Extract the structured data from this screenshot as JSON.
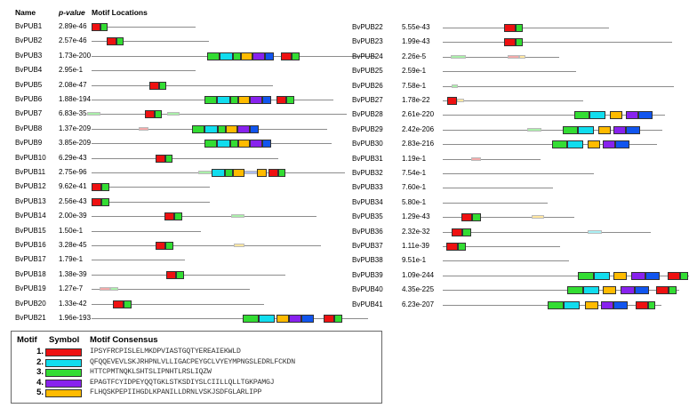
{
  "headers": {
    "name": "Name",
    "pvalue": "p-value",
    "locations": "Motif Locations"
  },
  "colors": {
    "m1": "#ee1111",
    "m2": "#11ddee",
    "m3": "#33dd33",
    "m4": "#8822ee",
    "m5": "#ffbb00",
    "m6": "#1155ee",
    "f1": "#f2aaaa",
    "f2": "#aaf0f4",
    "f3": "#aaeeaa",
    "f5": "#ffe6a0",
    "f6": "#aabbee"
  },
  "rows_left": [
    {
      "name": "BvPUB1",
      "pvalue": "2.89e-46",
      "motifs": [
        [
          "m1",
          0,
          10
        ],
        [
          "m3",
          10,
          8
        ]
      ]
    },
    {
      "name": "BvPUB2",
      "pvalue": "2.57e-46",
      "motifs": [
        [
          "m1",
          17,
          11
        ],
        [
          "m3",
          28,
          8
        ]
      ]
    },
    {
      "name": "BvPUB3",
      "pvalue": "1.73e-200",
      "motifs": [
        [
          "m3",
          130,
          14
        ],
        [
          "m2",
          144,
          15
        ],
        [
          "m3",
          159,
          9
        ],
        [
          "m5",
          168,
          13
        ],
        [
          "m4",
          181,
          14
        ],
        [
          "m6",
          195,
          10
        ],
        [
          "m1",
          213,
          12
        ],
        [
          "m3",
          225,
          9
        ]
      ]
    },
    {
      "name": "BvPUB4",
      "pvalue": "2.95e-1",
      "motifs": []
    },
    {
      "name": "BvPUB5",
      "pvalue": "2.08e-47",
      "motifs": [
        [
          "m1",
          65,
          11
        ],
        [
          "m3",
          76,
          8
        ]
      ]
    },
    {
      "name": "BvPUB6",
      "pvalue": "1.88e-194",
      "motifs": [
        [
          "m3",
          127,
          14
        ],
        [
          "m2",
          141,
          15
        ],
        [
          "m3",
          156,
          9
        ],
        [
          "m5",
          165,
          13
        ],
        [
          "m4",
          178,
          14
        ],
        [
          "m6",
          192,
          10
        ],
        [
          "m1",
          208,
          11
        ],
        [
          "m3",
          219,
          9
        ]
      ]
    },
    {
      "name": "BvPUB7",
      "pvalue": "6.83e-35",
      "motifs": [
        [
          "f3",
          -5,
          15
        ],
        [
          "m1",
          60,
          11
        ],
        [
          "m3",
          71,
          8
        ],
        [
          "f3",
          85,
          14
        ]
      ]
    },
    {
      "name": "BvPUB8",
      "pvalue": "1.37e-209",
      "motifs": [
        [
          "f1",
          53,
          11
        ],
        [
          "m3",
          113,
          14
        ],
        [
          "m2",
          127,
          15
        ],
        [
          "m3",
          142,
          9
        ],
        [
          "m5",
          151,
          13
        ],
        [
          "m4",
          164,
          14
        ],
        [
          "m6",
          178,
          10
        ]
      ]
    },
    {
      "name": "BvPUB9",
      "pvalue": "3.85e-209",
      "motifs": [
        [
          "m3",
          127,
          14
        ],
        [
          "m2",
          141,
          15
        ],
        [
          "m3",
          156,
          9
        ],
        [
          "m5",
          165,
          13
        ],
        [
          "m4",
          178,
          14
        ],
        [
          "m6",
          192,
          10
        ]
      ]
    },
    {
      "name": "BvPUB10",
      "pvalue": "6.29e-43",
      "motifs": [
        [
          "m1",
          72,
          11
        ],
        [
          "m3",
          83,
          8
        ]
      ]
    },
    {
      "name": "BvPUB11",
      "pvalue": "2.75e-96",
      "motifs": [
        [
          "f3",
          120,
          15
        ],
        [
          "m2",
          135,
          15
        ],
        [
          "m3",
          150,
          9
        ],
        [
          "m5",
          159,
          13
        ],
        [
          "f6",
          172,
          14
        ],
        [
          "m5",
          186,
          11
        ],
        [
          "m1",
          199,
          11
        ],
        [
          "m3",
          210,
          8
        ]
      ]
    },
    {
      "name": "BvPUB12",
      "pvalue": "9.62e-41",
      "motifs": [
        [
          "m1",
          0,
          11
        ],
        [
          "m3",
          11,
          9
        ]
      ]
    },
    {
      "name": "BvPUB13",
      "pvalue": "2.56e-43",
      "motifs": [
        [
          "m1",
          0,
          11
        ],
        [
          "m3",
          11,
          9
        ]
      ]
    },
    {
      "name": "BvPUB14",
      "pvalue": "2.00e-39",
      "motifs": [
        [
          "m1",
          82,
          11
        ],
        [
          "m3",
          93,
          9
        ],
        [
          "f3",
          157,
          15
        ]
      ]
    },
    {
      "name": "BvPUB15",
      "pvalue": "1.50e-1",
      "motifs": []
    },
    {
      "name": "BvPUB16",
      "pvalue": "3.28e-45",
      "motifs": [
        [
          "m1",
          72,
          11
        ],
        [
          "m3",
          83,
          9
        ],
        [
          "f5",
          160,
          12
        ]
      ]
    },
    {
      "name": "BvPUB17",
      "pvalue": "1.79e-1",
      "motifs": []
    },
    {
      "name": "BvPUB18",
      "pvalue": "1.38e-39",
      "motifs": [
        [
          "m1",
          84,
          11
        ],
        [
          "m3",
          95,
          9
        ]
      ]
    },
    {
      "name": "BvPUB19",
      "pvalue": "1.27e-7",
      "motifs": [
        [
          "f1",
          9,
          12
        ],
        [
          "f3",
          21,
          9
        ]
      ]
    },
    {
      "name": "BvPUB20",
      "pvalue": "1.33e-42",
      "motifs": [
        [
          "m1",
          24,
          12
        ],
        [
          "m3",
          36,
          9
        ]
      ]
    },
    {
      "name": "BvPUB21",
      "pvalue": "1.96e-193",
      "motifs": [
        [
          "m3",
          170,
          18
        ],
        [
          "m2",
          188,
          18
        ],
        [
          "m5",
          208,
          14
        ],
        [
          "m4",
          222,
          14
        ],
        [
          "m6",
          236,
          14
        ],
        [
          "m1",
          261,
          12
        ],
        [
          "m3",
          273,
          9
        ]
      ]
    }
  ],
  "rows_right": [
    {
      "name": "BvPUB22",
      "pvalue": "5.55e-43",
      "motifs": [
        [
          "m1",
          69,
          13
        ],
        [
          "m3",
          82,
          8
        ]
      ]
    },
    {
      "name": "BvPUB23",
      "pvalue": "1.99e-43",
      "motifs": [
        [
          "m1",
          69,
          13
        ],
        [
          "m3",
          82,
          8
        ]
      ]
    },
    {
      "name": "BvPUB24",
      "pvalue": "2.26e-5",
      "motifs": [
        [
          "f3",
          9,
          17
        ],
        [
          "f1",
          73,
          13
        ],
        [
          "f5",
          86,
          7
        ]
      ]
    },
    {
      "name": "BvPUB25",
      "pvalue": "2.59e-1",
      "motifs": []
    },
    {
      "name": "BvPUB26",
      "pvalue": "7.58e-1",
      "motifs": [
        [
          "f3",
          10,
          7
        ]
      ]
    },
    {
      "name": "BvPUB27",
      "pvalue": "1.78e-22",
      "motifs": [
        [
          "m1",
          5,
          11
        ],
        [
          "f5",
          16,
          8
        ]
      ]
    },
    {
      "name": "BvPUB28",
      "pvalue": "2.61e-220",
      "motifs": [
        [
          "m3",
          148,
          17
        ],
        [
          "m2",
          165,
          18
        ],
        [
          "m5",
          188,
          14
        ],
        [
          "m4",
          206,
          14
        ],
        [
          "m6",
          220,
          16
        ]
      ]
    },
    {
      "name": "BvPUB29",
      "pvalue": "2.42e-206",
      "motifs": [
        [
          "f3",
          95,
          16
        ],
        [
          "m3",
          135,
          17
        ],
        [
          "m2",
          152,
          18
        ],
        [
          "m5",
          175,
          14
        ],
        [
          "m4",
          192,
          14
        ],
        [
          "m6",
          206,
          16
        ]
      ]
    },
    {
      "name": "BvPUB30",
      "pvalue": "2.83e-216",
      "motifs": [
        [
          "m3",
          123,
          17
        ],
        [
          "m2",
          140,
          18
        ],
        [
          "m5",
          163,
          14
        ],
        [
          "m4",
          180,
          14
        ],
        [
          "m6",
          194,
          16
        ]
      ]
    },
    {
      "name": "BvPUB31",
      "pvalue": "1.19e-1",
      "motifs": [
        [
          "f1",
          32,
          11
        ]
      ]
    },
    {
      "name": "BvPUB32",
      "pvalue": "7.54e-1",
      "motifs": []
    },
    {
      "name": "BvPUB33",
      "pvalue": "7.60e-1",
      "motifs": []
    },
    {
      "name": "BvPUB34",
      "pvalue": "5.80e-1",
      "motifs": []
    },
    {
      "name": "BvPUB35",
      "pvalue": "1.29e-43",
      "motifs": [
        [
          "m1",
          21,
          12
        ],
        [
          "m3",
          33,
          10
        ],
        [
          "f5",
          100,
          14
        ]
      ]
    },
    {
      "name": "BvPUB36",
      "pvalue": "2.32e-32",
      "motifs": [
        [
          "m1",
          10,
          12
        ],
        [
          "m3",
          22,
          10
        ],
        [
          "f2",
          163,
          16
        ]
      ]
    },
    {
      "name": "BvPUB37",
      "pvalue": "1.11e-39",
      "motifs": [
        [
          "m1",
          4,
          13
        ],
        [
          "m3",
          17,
          9
        ]
      ]
    },
    {
      "name": "BvPUB38",
      "pvalue": "9.51e-1",
      "motifs": []
    },
    {
      "name": "BvPUB39",
      "pvalue": "1.09e-244",
      "motifs": [
        [
          "m3",
          152,
          18
        ],
        [
          "m2",
          170,
          18
        ],
        [
          "m5",
          192,
          15
        ],
        [
          "m4",
          212,
          16
        ],
        [
          "m6",
          228,
          16
        ],
        [
          "m1",
          253,
          14
        ],
        [
          "m3",
          267,
          9
        ]
      ]
    },
    {
      "name": "BvPUB40",
      "pvalue": "4.35e-225",
      "motifs": [
        [
          "m3",
          140,
          18
        ],
        [
          "m2",
          158,
          18
        ],
        [
          "m5",
          180,
          15
        ],
        [
          "m4",
          200,
          16
        ],
        [
          "m6",
          216,
          16
        ],
        [
          "m1",
          240,
          14
        ],
        [
          "m3",
          254,
          9
        ]
      ]
    },
    {
      "name": "BvPUB41",
      "pvalue": "6.23e-207",
      "motifs": [
        [
          "m3",
          118,
          18
        ],
        [
          "m2",
          136,
          18
        ],
        [
          "m5",
          160,
          15
        ],
        [
          "m4",
          178,
          14
        ],
        [
          "m6",
          192,
          16
        ],
        [
          "m1",
          217,
          14
        ],
        [
          "m3",
          231,
          8
        ]
      ]
    }
  ],
  "legend": {
    "col_motif": "Motif",
    "col_symbol": "Symbol",
    "col_consensus": "Motif Consensus",
    "items": [
      {
        "num": "1.",
        "color": "m1",
        "consensus": "IPSYFRCPISLELMKDPVIASTGQTYEREAIEKWLD"
      },
      {
        "num": "2.",
        "color": "m2",
        "consensus": "QFQQEVEVLSKJRHPNLVLLIGACPEYGCLVYEYMPNGSLEDRLFCKDN"
      },
      {
        "num": "3.",
        "color": "m3",
        "consensus": "HTTCPMTNQKLSHTSLIPNHTLRSLIQZW"
      },
      {
        "num": "4.",
        "color": "m4",
        "consensus": "EPAGTFCYIDPEYQQTGKLSTKSDIYSLCIILLQLLTGKPAMGJ"
      },
      {
        "num": "5.",
        "color": "m5",
        "consensus": "FLHQSKPEPIIHGDLKPANILLDRNLVSKJSDFGLARLIPP"
      }
    ]
  }
}
